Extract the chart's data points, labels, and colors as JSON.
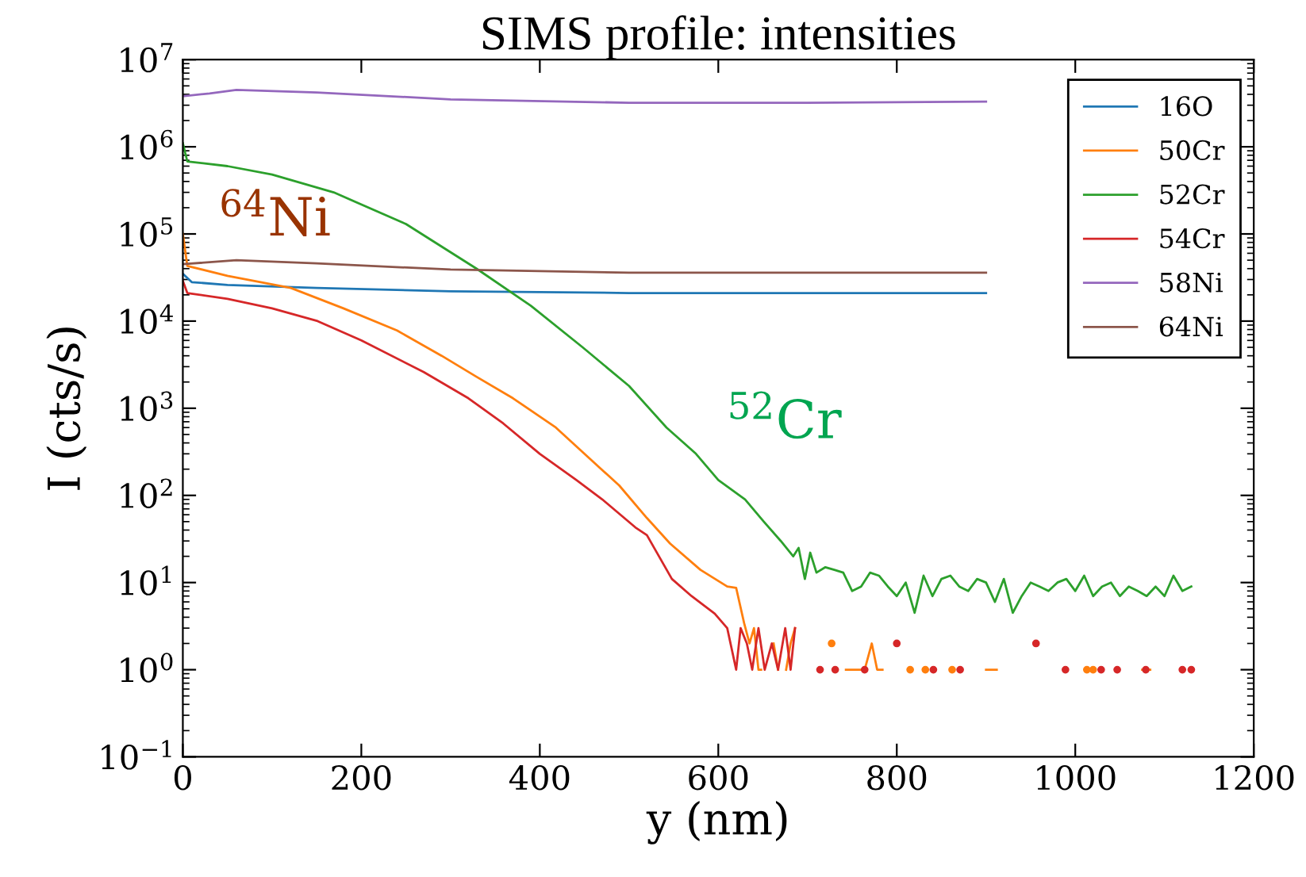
{
  "chart_data": {
    "type": "line",
    "title": "SIMS profile: intensities",
    "xlabel": "y (nm)",
    "ylabel": "I (cts/s)",
    "log": "y",
    "grid": false,
    "legend": "top right",
    "xlim": [
      0,
      1200
    ],
    "xticks": [
      0,
      200,
      400,
      600,
      800,
      1000,
      1200
    ],
    "ylim": [
      0.1,
      10000000
    ],
    "yticks": [
      {
        "value": 0.1,
        "label": "10$^{−1}$"
      },
      {
        "value": 1,
        "label": "10$^{0}$"
      },
      {
        "value": 10,
        "label": "10$^{1}$"
      },
      {
        "value": 100,
        "label": "10$^{2}$"
      },
      {
        "value": 1000,
        "label": "10$^{3}$"
      },
      {
        "value": 10000,
        "label": "10$^{4}$"
      },
      {
        "value": 100000,
        "label": "10$^{5}$"
      },
      {
        "value": 1000000,
        "label": "10$^{6}$"
      },
      {
        "value": 10000000,
        "label": "10$^{7}$"
      }
    ],
    "annotations": [
      {
        "text": "$^{64}$Ni",
        "x": 60,
        "y": 50000
      },
      {
        "text": "$^{52}$Cr",
        "x": 575,
        "y": 300
      }
    ],
    "series": [
      {
        "name": "16O",
        "color": "#1f77b4",
        "x": [
          0,
          10,
          50,
          150,
          300,
          500,
          700,
          900
        ],
        "values": [
          35000,
          28000,
          26000,
          24000,
          22000,
          21000,
          21000,
          21000
        ]
      },
      {
        "name": "50Cr",
        "color": "#ff7f0e",
        "x": [
          0,
          5,
          50,
          121,
          180,
          240,
          290,
          329,
          370,
          418,
          450,
          489,
          520,
          546,
          580,
          610,
          620,
          629,
          635,
          640,
          645,
          648,
          652,
          657,
          662,
          667,
          672,
          676,
          681,
          686,
          690,
          722,
          727,
          732,
          738,
          743,
          764,
          772,
          778,
          784,
          789,
          808,
          815,
          822,
          828,
          832,
          836,
          857,
          862,
          867,
          895,
          900,
          912,
          917,
          1008,
          1013,
          1016,
          1018,
          1020,
          1022,
          1070,
          1075,
          1084
        ],
        "values": [
          100000,
          43000,
          33000,
          24000,
          14000,
          7800,
          4000,
          2300,
          1300,
          600,
          300,
          130,
          55,
          28,
          14,
          9,
          8.7,
          3.4,
          2,
          3,
          1,
          1,
          null,
          null,
          2,
          1,
          null,
          1,
          2,
          3,
          null,
          null,
          2,
          null,
          null,
          1,
          1,
          2,
          1,
          1,
          null,
          null,
          1,
          null,
          null,
          1,
          null,
          null,
          1,
          null,
          null,
          1,
          1,
          null,
          null,
          1,
          null,
          null,
          1,
          null,
          null,
          1,
          1
        ]
      },
      {
        "name": "52Cr",
        "color": "#2ca02c",
        "x": [
          0,
          5,
          50,
          100,
          169,
          250,
          329,
          390,
          448,
          500,
          542,
          575,
          600,
          630,
          651,
          670,
          684,
          690,
          697,
          703,
          710,
          720,
          730,
          740,
          750,
          760,
          770,
          780,
          790,
          800,
          810,
          820,
          830,
          840,
          850,
          860,
          870,
          880,
          890,
          900,
          910,
          920,
          930,
          940,
          950,
          960,
          970,
          980,
          990,
          1000,
          1010,
          1020,
          1030,
          1040,
          1050,
          1060,
          1070,
          1080,
          1090,
          1100,
          1110,
          1120,
          1130
        ],
        "values": [
          1100000,
          680000,
          600000,
          480000,
          300000,
          130000,
          40000,
          15000,
          5000,
          1800,
          600,
          300,
          150,
          90,
          50,
          30,
          20,
          25,
          11,
          22,
          13,
          15,
          14,
          13,
          8,
          9,
          13,
          12,
          9,
          7,
          10,
          4.5,
          12,
          7,
          11,
          12,
          9,
          8,
          11,
          10,
          6,
          11,
          4.5,
          7,
          10,
          9,
          8,
          10,
          11,
          8,
          12,
          7,
          9,
          10,
          7,
          9,
          8,
          7,
          9,
          7,
          12,
          8,
          9
        ]
      },
      {
        "name": "54Cr",
        "color": "#d62728",
        "x": [
          0,
          5,
          50,
          100,
          151,
          200,
          270,
          320,
          359,
          400,
          441,
          470,
          507,
          520,
          548,
          570,
          596,
          610,
          620,
          625,
          632,
          638,
          645,
          652,
          660,
          667,
          675,
          681,
          686,
          690,
          709,
          714,
          719,
          726,
          731,
          736,
          759,
          764,
          769,
          795,
          800,
          805,
          836,
          841,
          846,
          866,
          871,
          876,
          951,
          956,
          961,
          984,
          989,
          994,
          1024,
          1029,
          1034,
          1042,
          1047,
          1052,
          1074,
          1079,
          1084,
          1115,
          1120,
          1125,
          1130
        ],
        "values": [
          29000,
          21000,
          18000,
          14000,
          10000,
          6000,
          2600,
          1300,
          670,
          300,
          150,
          90,
          43,
          35,
          11,
          7,
          4.4,
          3,
          1,
          3,
          2,
          1,
          3,
          1,
          2,
          1,
          3,
          1,
          3,
          null,
          null,
          1,
          null,
          null,
          1,
          null,
          null,
          1,
          null,
          null,
          2,
          null,
          null,
          1,
          null,
          null,
          1,
          null,
          null,
          2,
          null,
          null,
          1,
          null,
          null,
          1,
          null,
          null,
          1,
          null,
          null,
          1,
          null,
          null,
          1,
          null,
          1
        ]
      },
      {
        "name": "58Ni",
        "color": "#9467bd",
        "x": [
          0,
          30,
          60,
          150,
          300,
          500,
          700,
          900
        ],
        "values": [
          3800000,
          4100000,
          4500000,
          4200000,
          3500000,
          3200000,
          3200000,
          3300000
        ]
      },
      {
        "name": "64Ni",
        "color": "#8c564b",
        "x": [
          0,
          60,
          150,
          300,
          500,
          900
        ],
        "values": [
          45000,
          50000,
          46000,
          39000,
          36000,
          36000
        ]
      }
    ]
  }
}
